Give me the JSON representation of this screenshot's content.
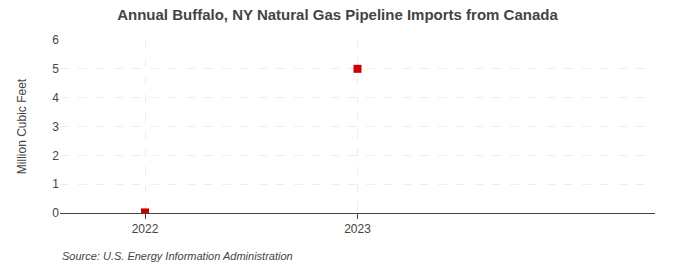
{
  "chart_data": {
    "type": "scatter",
    "title": "Annual Buffalo, NY Natural Gas Pipeline Imports from Canada",
    "ylabel": "Million Cubic Feet",
    "annotations": [
      "Source: U.S. Energy Information Administration"
    ],
    "x": [
      2022,
      2023
    ],
    "values": [
      0.02,
      5.0
    ],
    "color": "#cc0000",
    "marker": "square",
    "xlim": [
      2021.6,
      2024.4
    ],
    "xticks": [
      2022,
      2023
    ],
    "ylim": [
      0,
      6
    ],
    "yticks": [
      0,
      1,
      2,
      3,
      4,
      5,
      6
    ],
    "grid": true
  }
}
